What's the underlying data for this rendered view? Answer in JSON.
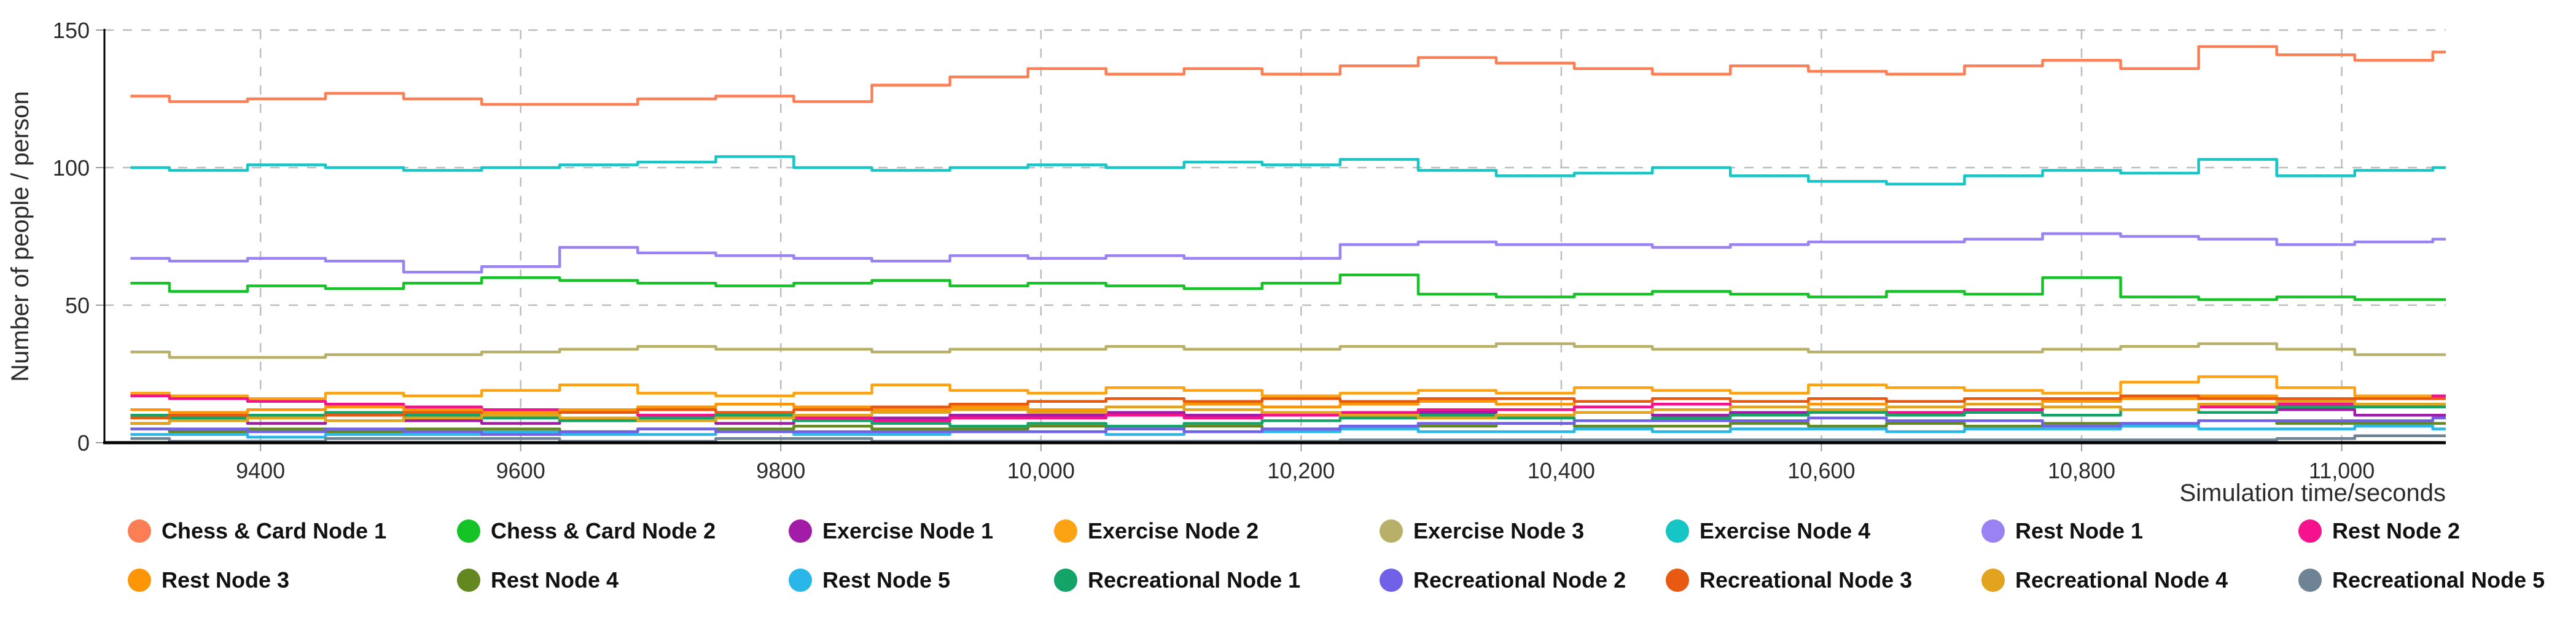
{
  "chart_data": {
    "type": "line",
    "title": "",
    "xlabel": "Simulation time/seconds",
    "ylabel": "Number of people / person",
    "xlim": [
      9280,
      11080
    ],
    "ylim": [
      0,
      150
    ],
    "grid": "dashed",
    "legend_position": "bottom",
    "legend_rows": 2,
    "x_ticks": [
      {
        "value": 9400,
        "label": "9400"
      },
      {
        "value": 9600,
        "label": "9600"
      },
      {
        "value": 9800,
        "label": "9800"
      },
      {
        "value": 10000,
        "label": "10,000"
      },
      {
        "value": 10200,
        "label": "10,200"
      },
      {
        "value": 10400,
        "label": "10,400"
      },
      {
        "value": 10600,
        "label": "10,600"
      },
      {
        "value": 10800,
        "label": "10,800"
      },
      {
        "value": 11000,
        "label": "11,000"
      }
    ],
    "y_ticks": [
      {
        "value": 0,
        "label": "0"
      },
      {
        "value": 50,
        "label": "50"
      },
      {
        "value": 100,
        "label": "100"
      },
      {
        "value": 150,
        "label": "150"
      }
    ],
    "x_start": 9300,
    "x_step": 60,
    "series": [
      {
        "name": "Chess & Card Node 1",
        "color": "#FB7E55",
        "values": [
          126,
          124,
          125,
          127,
          125,
          123,
          123,
          125,
          126,
          124,
          130,
          133,
          136,
          134,
          136,
          134,
          137,
          140,
          138,
          136,
          134,
          137,
          135,
          134,
          137,
          139,
          136,
          144,
          141,
          139,
          142
        ]
      },
      {
        "name": "Chess & Card Node 2",
        "color": "#15C327",
        "values": [
          58,
          55,
          57,
          56,
          58,
          60,
          59,
          58,
          57,
          58,
          59,
          57,
          58,
          57,
          56,
          58,
          61,
          54,
          53,
          54,
          55,
          54,
          53,
          55,
          54,
          60,
          53,
          52,
          53,
          52,
          52
        ]
      },
      {
        "name": "Exercise Node 1",
        "color": "#A21CA8",
        "values": [
          7,
          8,
          7,
          8,
          8,
          7,
          8,
          8,
          7,
          8,
          9,
          10,
          10,
          11,
          10,
          11,
          10,
          11,
          12,
          11,
          10,
          11,
          12,
          11,
          12,
          13,
          12,
          11,
          12,
          10,
          10
        ]
      },
      {
        "name": "Exercise Node 2",
        "color": "#FBA313",
        "values": [
          18,
          17,
          16,
          18,
          17,
          19,
          21,
          18,
          17,
          18,
          21,
          19,
          18,
          20,
          19,
          17,
          18,
          19,
          18,
          20,
          19,
          18,
          21,
          20,
          19,
          18,
          22,
          24,
          20,
          17,
          17
        ]
      },
      {
        "name": "Exercise Node 3",
        "color": "#B8B069",
        "values": [
          33,
          31,
          31,
          32,
          32,
          33,
          34,
          35,
          34,
          34,
          33,
          34,
          34,
          35,
          34,
          34,
          35,
          35,
          36,
          35,
          34,
          34,
          33,
          33,
          33,
          34,
          35,
          36,
          34,
          32,
          32
        ]
      },
      {
        "name": "Exercise Node 4",
        "color": "#16C5C5",
        "values": [
          100,
          99,
          101,
          100,
          99,
          100,
          101,
          102,
          104,
          100,
          99,
          100,
          101,
          100,
          102,
          101,
          103,
          99,
          97,
          98,
          100,
          97,
          95,
          94,
          97,
          99,
          98,
          103,
          97,
          99,
          100
        ]
      },
      {
        "name": "Rest Node 1",
        "color": "#9B82F3",
        "values": [
          67,
          66,
          67,
          66,
          62,
          64,
          71,
          69,
          68,
          67,
          66,
          68,
          67,
          68,
          67,
          67,
          72,
          73,
          72,
          72,
          71,
          72,
          73,
          73,
          74,
          76,
          75,
          74,
          72,
          73,
          74
        ]
      },
      {
        "name": "Rest Node 2",
        "color": "#F5128D",
        "values": [
          17,
          16,
          15,
          14,
          13,
          12,
          11,
          10,
          9,
          9,
          8,
          9,
          9,
          10,
          9,
          10,
          11,
          12,
          12,
          13,
          14,
          13,
          12,
          11,
          12,
          13,
          12,
          13,
          14,
          16,
          17
        ]
      },
      {
        "name": "Rest Node 3",
        "color": "#FC9607",
        "values": [
          12,
          11,
          12,
          13,
          12,
          11,
          12,
          13,
          14,
          13,
          12,
          13,
          12,
          13,
          14,
          13,
          14,
          15,
          14,
          15,
          16,
          15,
          14,
          15,
          16,
          15,
          16,
          17,
          16,
          16,
          16
        ]
      },
      {
        "name": "Rest Node 4",
        "color": "#63881F",
        "values": [
          5,
          4,
          5,
          4,
          5,
          5,
          4,
          5,
          5,
          6,
          5,
          5,
          6,
          5,
          6,
          5,
          6,
          6,
          7,
          6,
          6,
          7,
          6,
          7,
          6,
          7,
          7,
          8,
          7,
          7,
          7
        ]
      },
      {
        "name": "Rest Node 5",
        "color": "#29B6E8",
        "values": [
          3,
          3,
          2,
          3,
          3,
          4,
          3,
          3,
          4,
          3,
          3,
          4,
          4,
          3,
          4,
          4,
          5,
          4,
          4,
          5,
          4,
          5,
          5,
          4,
          5,
          5,
          6,
          5,
          5,
          6,
          5
        ]
      },
      {
        "name": "Recreational Node 1",
        "color": "#14A467",
        "values": [
          10,
          9,
          10,
          11,
          10,
          9,
          8,
          9,
          10,
          8,
          7,
          6,
          7,
          6,
          7,
          8,
          9,
          10,
          9,
          8,
          9,
          10,
          11,
          10,
          11,
          10,
          12,
          11,
          13,
          13,
          13
        ]
      },
      {
        "name": "Recreational Node 2",
        "color": "#7160E8",
        "values": [
          5,
          5,
          4,
          5,
          4,
          3,
          4,
          5,
          4,
          4,
          4,
          4,
          4,
          5,
          4,
          5,
          6,
          7,
          7,
          8,
          8,
          8,
          9,
          8,
          8,
          6,
          7,
          8,
          8,
          8,
          9
        ]
      },
      {
        "name": "Recreational Node 3",
        "color": "#E85A12",
        "values": [
          9,
          10,
          9,
          10,
          11,
          10,
          11,
          12,
          11,
          12,
          13,
          14,
          15,
          16,
          15,
          16,
          15,
          16,
          16,
          15,
          16,
          15,
          16,
          15,
          16,
          16,
          17,
          16,
          16,
          16,
          16
        ]
      },
      {
        "name": "Recreational Node 4",
        "color": "#E2A41F",
        "values": [
          7,
          8,
          9,
          8,
          9,
          10,
          9,
          8,
          9,
          10,
          11,
          12,
          11,
          13,
          12,
          11,
          10,
          9,
          10,
          11,
          12,
          13,
          12,
          13,
          14,
          13,
          12,
          14,
          15,
          14,
          14
        ]
      },
      {
        "name": "Recreational Node 5",
        "color": "#6E8394",
        "values": [
          1.5,
          0.5,
          0.5,
          1.5,
          1.5,
          1.5,
          0.5,
          0.5,
          1.5,
          1.5,
          0.5,
          0.5,
          0.5,
          0.5,
          0.5,
          0.5,
          1,
          1,
          1,
          1,
          1,
          1,
          1,
          1,
          1,
          1,
          1,
          1,
          1.5,
          2.5,
          2.5
        ]
      }
    ]
  }
}
